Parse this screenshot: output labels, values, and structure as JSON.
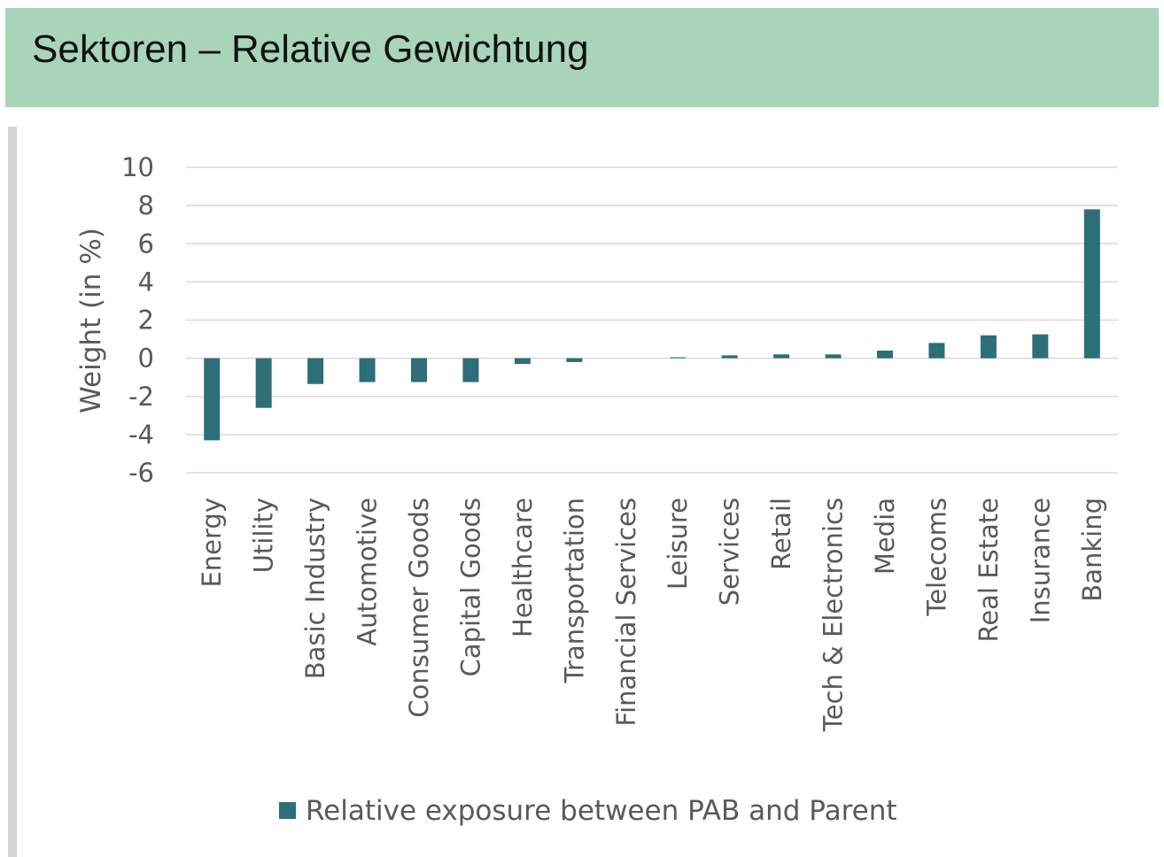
{
  "header": {
    "title": "Sektoren – Relative Gewichtung"
  },
  "colors": {
    "header_background": "#a8d5b9",
    "bar": "#2d6e78",
    "gridline": "#d9d9d9",
    "text": "#595959"
  },
  "chart_data": {
    "type": "bar",
    "categories": [
      "Energy",
      "Utility",
      "Basic Industry",
      "Automotive",
      "Consumer Goods",
      "Capital Goods",
      "Healthcare",
      "Transportation",
      "Financial Services",
      "Leisure",
      "Services",
      "Retail",
      "Tech & Electronics",
      "Media",
      "Telecoms",
      "Real Estate",
      "Insurance",
      "Banking"
    ],
    "series": [
      {
        "name": "Relative exposure between PAB and Parent",
        "values": [
          -4.3,
          -2.6,
          -1.35,
          -1.25,
          -1.25,
          -1.25,
          -0.3,
          -0.2,
          0.0,
          0.05,
          0.15,
          0.2,
          0.2,
          0.4,
          0.8,
          1.2,
          1.25,
          7.8
        ]
      }
    ],
    "ylabel": "Weight (in %)",
    "ylim": [
      -6,
      10
    ],
    "yticks": [
      -6,
      -4,
      -2,
      0,
      2,
      4,
      6,
      8,
      10
    ],
    "grid": true,
    "legend_position": "bottom"
  }
}
